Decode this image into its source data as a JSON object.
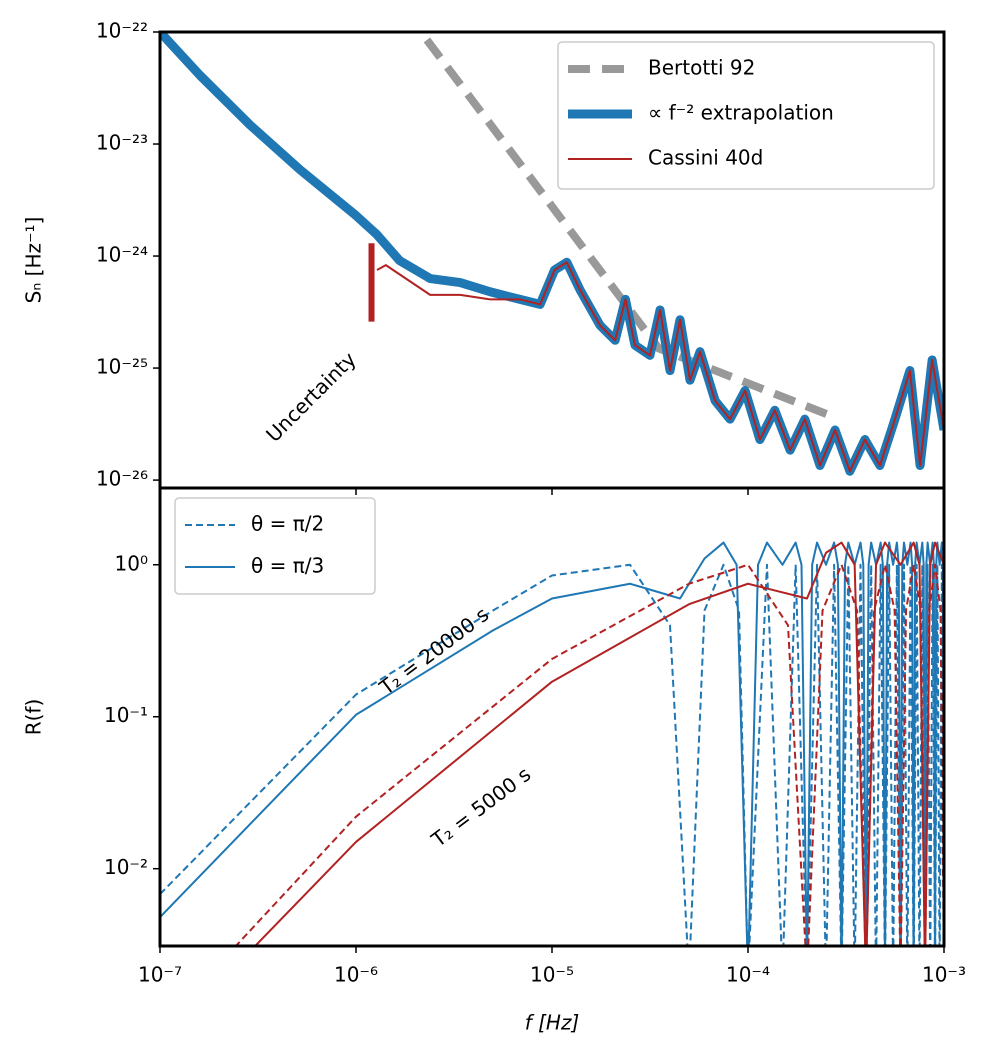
{
  "chart_data": [
    {
      "type": "line",
      "xscale": "log",
      "yscale": "log",
      "ylabel": "Sₙ [Hz⁻¹]",
      "xlim": [
        1e-07,
        0.001
      ],
      "ylim": [
        8.5e-27,
        1e-22
      ],
      "legend": "upper right",
      "yticks": [
        {
          "value": 1e-26,
          "label": "10⁻²⁶"
        },
        {
          "value": 1e-25,
          "label": "10⁻²⁵"
        },
        {
          "value": 1e-24,
          "label": "10⁻²⁴"
        },
        {
          "value": 1e-23,
          "label": "10⁻²³"
        },
        {
          "value": 1e-22,
          "label": "10⁻²²"
        }
      ],
      "series": [
        {
          "name": "Bertotti 92",
          "color": "#999999",
          "linestyle": "dashed",
          "linewidth": 8,
          "x": [
            2.3e-06,
            3.5e-05,
            0.00026
          ],
          "values": [
            8.5e-23,
            1.5e-25,
            3.8e-26
          ]
        },
        {
          "name": "∝ f⁻² extrapolation",
          "color": "#1f77b4",
          "linestyle": "solid",
          "linewidth": 9,
          "x": [
            1e-07,
            1.6e-07,
            2.88e-07,
            5.18e-07,
            1e-06,
            1.28e-06,
            1.67e-06,
            2.39e-06,
            3.4e-06,
            4.83e-06,
            6.87e-06,
            8.7e-06,
            1.03e-05,
            1.19e-05,
            1.39e-05,
            1.76e-05,
            2.1e-05,
            2.37e-05,
            2.65e-05,
            3.16e-05,
            3.56e-05,
            4e-05,
            4.5e-05,
            5.06e-05,
            5.69e-05,
            6.8e-05,
            8.1e-05,
            9.66e-05,
            0.000115,
            0.000137,
            0.000164,
            0.000195,
            0.000233,
            0.000278,
            0.000331,
            0.000395,
            0.000471,
            0.000562,
            0.00067,
            0.000755,
            0.00087,
            0.001
          ],
          "values": [
            1e-22,
            4.1e-23,
            1.48e-23,
            5.9e-24,
            2.3e-24,
            1.55e-24,
            9.1e-25,
            6.3e-25,
            5.8e-25,
            4.8e-25,
            4.1e-25,
            3.7e-25,
            7.5e-25,
            8.8e-25,
            5e-25,
            2.4e-25,
            1.77e-25,
            4.1e-25,
            1.6e-25,
            1.3e-25,
            3.3e-25,
            9.5e-26,
            2.7e-25,
            7.8e-26,
            1.4e-25,
            5.1e-26,
            3.5e-26,
            6.3e-26,
            2.3e-26,
            4.2e-26,
            1.85e-26,
            3.5e-26,
            1.35e-26,
            2.8e-26,
            1.2e-26,
            2.3e-26,
            1.35e-26,
            3.5e-26,
            9.5e-26,
            1.35e-26,
            1.18e-25,
            2.8e-26
          ]
        },
        {
          "name": "Cassini 40d",
          "color": "#b22222",
          "linestyle": "solid",
          "linewidth": 2,
          "x": [
            1.28e-06,
            1.42e-06,
            2.39e-06,
            3.4e-06,
            4.83e-06,
            6.87e-06,
            8.7e-06,
            1.03e-05,
            1.19e-05,
            1.39e-05,
            1.76e-05,
            2.1e-05,
            2.37e-05,
            2.65e-05,
            3.16e-05,
            3.56e-05,
            4e-05,
            4.5e-05,
            5.06e-05,
            5.69e-05,
            6.8e-05,
            8.1e-05,
            9.66e-05,
            0.000115,
            0.000137,
            0.000164,
            0.000195,
            0.000233,
            0.000278,
            0.000331,
            0.000395,
            0.000471,
            0.000562,
            0.00067,
            0.000755,
            0.00087,
            0.001
          ],
          "values": [
            7.5e-25,
            8.3e-25,
            4.5e-25,
            4.5e-25,
            4.1e-25,
            4.1e-25,
            3.7e-25,
            7.5e-25,
            8.8e-25,
            5e-25,
            2.4e-25,
            1.77e-25,
            4.1e-25,
            1.6e-25,
            1.3e-25,
            3.3e-25,
            9.5e-26,
            2.7e-25,
            7.8e-26,
            1.4e-25,
            5.1e-26,
            3.5e-26,
            6.3e-26,
            2.3e-26,
            4.2e-26,
            1.85e-26,
            3.5e-26,
            1.35e-26,
            2.8e-26,
            1.2e-26,
            2.3e-26,
            1.35e-26,
            3.5e-26,
            9.5e-26,
            1.35e-26,
            1.18e-25,
            2.8e-26
          ]
        }
      ],
      "uncertainty": {
        "text": "Uncertainty",
        "color": "#b22222",
        "x": 1.2e-06,
        "high": 1.3e-24,
        "low": 2.6e-25
      }
    },
    {
      "type": "line",
      "xscale": "log",
      "yscale": "log",
      "xlabel": "f [Hz]",
      "ylabel": "R(f)",
      "xlim": [
        1e-07,
        0.001
      ],
      "ylim": [
        0.0031,
        3.2
      ],
      "legend": "upper left",
      "xticks": [
        {
          "value": 1e-07,
          "label": "10⁻⁷"
        },
        {
          "value": 1e-06,
          "label": "10⁻⁶"
        },
        {
          "value": 1e-05,
          "label": "10⁻⁵"
        },
        {
          "value": 0.0001,
          "label": "10⁻⁴"
        },
        {
          "value": 0.001,
          "label": "10⁻³"
        }
      ],
      "yticks": [
        {
          "value": 0.01,
          "label": "10⁻²"
        },
        {
          "value": 0.1,
          "label": "10⁻¹"
        },
        {
          "value": 1,
          "label": "10⁰"
        }
      ],
      "series": [
        {
          "name": "θ = π/2",
          "color": "#1f77b4",
          "linestyle": "dashed",
          "linewidth": 2,
          "x": [
            1e-07,
            1e-06,
            5e-06,
            1e-05,
            2.5e-05,
            4e-05,
            5e-05,
            6e-05,
            7.5e-05,
            9e-05,
            0.0001,
            0.000125,
            0.00015,
            0.000175,
            0.0002,
            0.000225,
            0.00025,
            0.000275,
            0.0003,
            0.000325,
            0.00035,
            0.000375,
            0.0004,
            0.000425,
            0.00045,
            0.000475,
            0.0005,
            0.000525,
            0.00055,
            0.000575,
            0.0006,
            0.000625,
            0.00065,
            0.000675,
            0.0007,
            0.000725,
            0.00075,
            0.000775,
            0.0008,
            0.000825,
            0.00085,
            0.000875,
            0.0009,
            0.000925,
            0.00095,
            0.000975,
            0.001
          ],
          "values": [
            0.0068,
            0.14,
            0.5,
            0.85,
            1.0,
            0.4,
            0.002,
            0.5,
            1.0,
            0.5,
            0.002,
            1.0,
            0.002,
            1.0,
            0.002,
            1.0,
            0.002,
            1.0,
            0.002,
            1.0,
            0.002,
            1.0,
            0.002,
            1.0,
            0.002,
            1.0,
            0.002,
            1.0,
            0.002,
            1.0,
            0.002,
            1.0,
            0.002,
            1.0,
            0.002,
            1.0,
            0.002,
            1.0,
            0.002,
            1.0,
            0.002,
            1.0,
            0.002,
            1.0,
            0.002,
            1.0,
            0.002
          ]
        },
        {
          "name": "θ = π/3",
          "color": "#1f77b4",
          "linestyle": "solid",
          "linewidth": 2,
          "x": [
            1e-07,
            1e-06,
            5e-06,
            1e-05,
            2.5e-05,
            4.5e-05,
            6e-05,
            7.5e-05,
            8.75e-05,
            0.0001,
            0.0001125,
            0.000125,
            0.00015,
            0.000175,
            0.0001875,
            0.0002,
            0.0002125,
            0.000225,
            0.00025,
            0.000275,
            0.0002875,
            0.0003,
            0.0003125,
            0.000325,
            0.00035,
            0.000375,
            0.0003875,
            0.0004,
            0.0004125,
            0.000425,
            0.00045,
            0.000475,
            0.0004875,
            0.0005,
            0.0005125,
            0.000525,
            0.00055,
            0.000575,
            0.0005875,
            0.0006,
            0.0006125,
            0.000625,
            0.00065,
            0.000675,
            0.0006875,
            0.0007,
            0.0007125,
            0.000725,
            0.00075,
            0.000775,
            0.0007875,
            0.0008,
            0.0008125,
            0.000825,
            0.00085,
            0.000875,
            0.0008875,
            0.0009,
            0.0009125,
            0.000925,
            0.00095,
            0.000975,
            0.0009875,
            0.001
          ],
          "values": [
            0.0048,
            0.103,
            0.37,
            0.6,
            0.75,
            0.6,
            1.1,
            1.4,
            1.0,
            0.002,
            1.0,
            1.4,
            1.0,
            1.4,
            1.0,
            0.002,
            1.0,
            1.4,
            1.0,
            1.4,
            1.0,
            0.002,
            1.0,
            1.4,
            1.0,
            1.4,
            1.0,
            0.002,
            1.0,
            1.4,
            1.0,
            1.4,
            1.0,
            0.002,
            1.0,
            1.4,
            1.0,
            1.4,
            1.0,
            0.002,
            1.0,
            1.4,
            1.0,
            1.4,
            1.0,
            0.002,
            1.0,
            1.4,
            1.0,
            1.4,
            1.0,
            0.002,
            1.0,
            1.4,
            1.0,
            1.4,
            1.0,
            0.002,
            1.0,
            1.4,
            1.0,
            1.4,
            1.0,
            0.002
          ]
        },
        {
          "color": "#b22222",
          "linestyle": "dashed",
          "linewidth": 2,
          "x": [
            1e-07,
            1e-06,
            1e-05,
            5e-05,
            0.0001,
            0.00016,
            0.0002,
            0.00024,
            0.0003,
            0.00036,
            0.0004,
            0.00044,
            0.0005,
            0.00056,
            0.0006,
            0.00064,
            0.0007,
            0.00076,
            0.0008,
            0.00084,
            0.0009,
            0.00096,
            0.001
          ],
          "values": [
            0.0009,
            0.022,
            0.24,
            0.75,
            1.0,
            0.4,
            0.002,
            0.5,
            1.0,
            0.5,
            0.002,
            0.5,
            1.0,
            0.5,
            0.002,
            0.5,
            1.0,
            0.5,
            0.002,
            0.5,
            1.0,
            0.5,
            0.002
          ]
        },
        {
          "color": "#b22222",
          "linestyle": "solid",
          "linewidth": 2,
          "x": [
            1e-07,
            1e-06,
            1e-05,
            5e-05,
            0.0001,
            0.0002,
            0.00025,
            0.0003,
            0.00035,
            0.0004,
            0.00045,
            0.0005,
            0.0006,
            0.0007,
            0.00075,
            0.0008,
            0.00085,
            0.0009,
            0.001
          ],
          "values": [
            0.0007,
            0.015,
            0.17,
            0.55,
            0.75,
            0.6,
            1.2,
            1.4,
            1.0,
            0.002,
            1.0,
            1.4,
            1.0,
            1.4,
            1.0,
            0.002,
            1.0,
            1.4,
            1.0
          ]
        }
      ],
      "annotations": [
        {
          "text": "T₂ = 20000 s",
          "color": "#1f77b4"
        },
        {
          "text": "T₂ = 5000 s",
          "color": "#b22222"
        }
      ]
    }
  ]
}
